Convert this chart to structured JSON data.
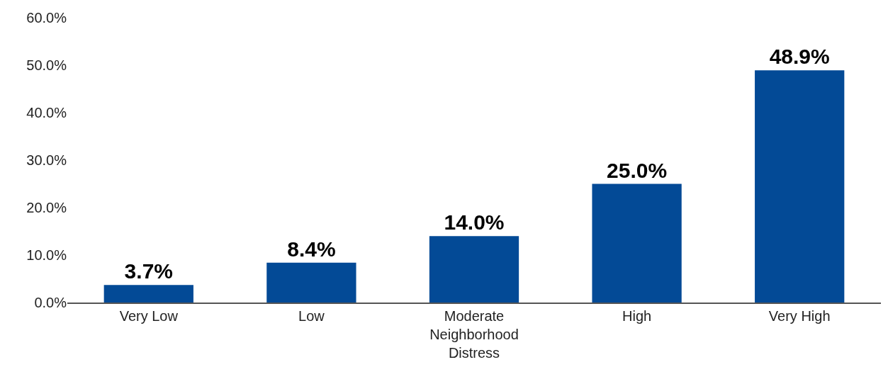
{
  "chart_data": {
    "type": "bar",
    "categories": [
      "Very Low",
      "Low",
      "Moderate Neighborhood Distress",
      "High",
      "Very High"
    ],
    "values": [
      3.7,
      8.4,
      14.0,
      25.0,
      48.9
    ],
    "value_labels": [
      "3.7%",
      "8.4%",
      "14.0%",
      "25.0%",
      "48.9%"
    ],
    "color": "#034a96",
    "ylim": [
      0,
      60
    ],
    "yticks": [
      {
        "value": 0,
        "label": "0.0%"
      },
      {
        "value": 10,
        "label": "10.0%"
      },
      {
        "value": 20,
        "label": "20.0%"
      },
      {
        "value": 30,
        "label": "30.0%"
      },
      {
        "value": 40,
        "label": "40.0%"
      },
      {
        "value": 50,
        "label": "50.0%"
      },
      {
        "value": 60,
        "label": "60.0%"
      }
    ],
    "grid": false
  }
}
